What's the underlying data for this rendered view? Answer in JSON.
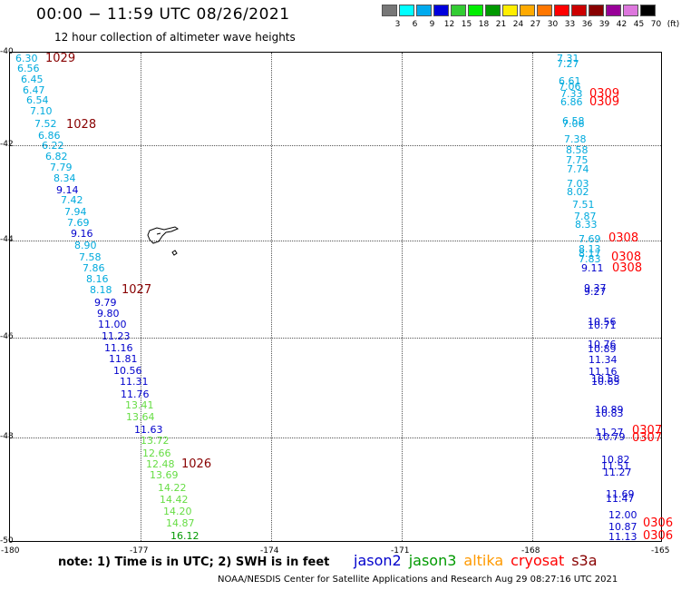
{
  "title": "00:00 − 11:59 UTC 08/26/2021",
  "subtitle": "12 hour collection of altimeter wave heights",
  "legend": {
    "colors": [
      "#777777",
      "#00ffff",
      "#00aaee",
      "#0000dd",
      "#33cc33",
      "#00ee00",
      "#009900",
      "#ffee00",
      "#ffaa00",
      "#ff7700",
      "#ff0000",
      "#cc0000",
      "#880000",
      "#990099",
      "#dd77dd",
      "#000000"
    ],
    "labels": [
      "3",
      "6",
      "9",
      "12",
      "15",
      "18",
      "21",
      "24",
      "27",
      "30",
      "33",
      "36",
      "39",
      "42",
      "45",
      "70",
      "(ft)"
    ]
  },
  "axes": {
    "y_labels": [
      "-40",
      "-42",
      "-44",
      "-46",
      "-48",
      "-50"
    ],
    "x_labels": [
      "-180",
      "-177",
      "-174",
      "-171",
      "-168",
      "-165"
    ]
  },
  "satellite_colors": {
    "jason2": "#0000cc",
    "jason3": "#009900",
    "altika": "#ff9900",
    "cryosat": "#ff0000",
    "s3a": "#880000"
  },
  "track_points": [
    {
      "t": "6.30",
      "c": "#00aadd"
    },
    {
      "t": "6.56",
      "c": "#00aadd"
    },
    {
      "t": "6.45",
      "c": "#00aadd"
    },
    {
      "t": "6.47",
      "c": "#00aadd"
    },
    {
      "t": "6.54",
      "c": "#00aadd"
    },
    {
      "t": "7.10",
      "c": "#00aadd"
    },
    {
      "t": "7.52",
      "c": "#00aadd"
    },
    {
      "t": "6.86",
      "c": "#00aadd"
    },
    {
      "t": "6.22",
      "c": "#00aadd"
    },
    {
      "t": "6.82",
      "c": "#00aadd"
    },
    {
      "t": "7.79",
      "c": "#00aadd"
    },
    {
      "t": "8.34",
      "c": "#00aadd"
    },
    {
      "t": "9.14",
      "c": "#0000cc"
    },
    {
      "t": "7.42",
      "c": "#00aadd"
    },
    {
      "t": "7.94",
      "c": "#00aadd"
    },
    {
      "t": "7.69",
      "c": "#00aadd"
    },
    {
      "t": "9.16",
      "c": "#0000cc"
    },
    {
      "t": "8.90",
      "c": "#00aadd"
    },
    {
      "t": "7.58",
      "c": "#00aadd"
    },
    {
      "t": "7.86",
      "c": "#00aadd"
    },
    {
      "t": "8.16",
      "c": "#00aadd"
    },
    {
      "t": "8.18",
      "c": "#00aadd"
    },
    {
      "t": "9.79",
      "c": "#0000cc"
    },
    {
      "t": "9.80",
      "c": "#0000cc"
    },
    {
      "t": "11.00",
      "c": "#0000cc"
    },
    {
      "t": "11.23",
      "c": "#0000cc"
    },
    {
      "t": "11.16",
      "c": "#0000cc"
    },
    {
      "t": "11.81",
      "c": "#0000cc"
    },
    {
      "t": "10.56",
      "c": "#0000cc"
    },
    {
      "t": "11.31",
      "c": "#0000cc"
    },
    {
      "t": "11.76",
      "c": "#0000cc"
    },
    {
      "t": "13.41",
      "c": "#66dd44"
    },
    {
      "t": "13.64",
      "c": "#66dd44"
    },
    {
      "t": "11.63",
      "c": "#0000cc"
    },
    {
      "t": "13.72",
      "c": "#66dd44"
    },
    {
      "t": "12.66",
      "c": "#66dd44"
    },
    {
      "t": "12.48",
      "c": "#66dd44"
    },
    {
      "t": "13.69",
      "c": "#66dd44"
    },
    {
      "t": "14.22",
      "c": "#66dd44"
    },
    {
      "t": "14.42",
      "c": "#66dd44"
    },
    {
      "t": "14.20",
      "c": "#66dd44"
    },
    {
      "t": "14.87",
      "c": "#66dd44"
    },
    {
      "t": "16.12",
      "c": "#009900"
    },
    {
      "t": "7.31",
      "c": "#00aadd"
    },
    {
      "t": "7.27",
      "c": "#00aadd"
    },
    {
      "t": "6.61",
      "c": "#00aadd"
    },
    {
      "t": "7.06",
      "c": "#00aadd"
    },
    {
      "t": "7.33",
      "c": "#00aadd"
    },
    {
      "t": "6.86",
      "c": "#00aadd"
    },
    {
      "t": "6.58",
      "c": "#00aadd"
    },
    {
      "t": "7.06",
      "c": "#00aadd"
    },
    {
      "t": "7.38",
      "c": "#00aadd"
    },
    {
      "t": "8.58",
      "c": "#00aadd"
    },
    {
      "t": "7.75",
      "c": "#00aadd"
    },
    {
      "t": "7.74",
      "c": "#00aadd"
    },
    {
      "t": "7.03",
      "c": "#00aadd"
    },
    {
      "t": "8.02",
      "c": "#00aadd"
    },
    {
      "t": "7.51",
      "c": "#00aadd"
    },
    {
      "t": "7.87",
      "c": "#00aadd"
    },
    {
      "t": "8.33",
      "c": "#00aadd"
    },
    {
      "t": "7.69",
      "c": "#00aadd"
    },
    {
      "t": "8.13",
      "c": "#00aadd"
    },
    {
      "t": "8.17",
      "c": "#00aadd"
    },
    {
      "t": "7.83",
      "c": "#00aadd"
    },
    {
      "t": "9.11",
      "c": "#0000cc"
    },
    {
      "t": "9.37",
      "c": "#0000cc"
    },
    {
      "t": "9.27",
      "c": "#0000cc"
    },
    {
      "t": "10.56",
      "c": "#0000cc"
    },
    {
      "t": "10.71",
      "c": "#0000cc"
    },
    {
      "t": "10.76",
      "c": "#0000cc"
    },
    {
      "t": "10.89",
      "c": "#0000cc"
    },
    {
      "t": "11.34",
      "c": "#0000cc"
    },
    {
      "t": "11.16",
      "c": "#0000cc"
    },
    {
      "t": "10.58",
      "c": "#0000cc"
    },
    {
      "t": "10.65",
      "c": "#0000cc"
    },
    {
      "t": "10.89",
      "c": "#0000cc"
    },
    {
      "t": "10.83",
      "c": "#0000cc"
    },
    {
      "t": "11.27",
      "c": "#0000cc"
    },
    {
      "t": "10.79",
      "c": "#0000cc"
    },
    {
      "t": "10.82",
      "c": "#0000cc"
    },
    {
      "t": "11.51",
      "c": "#0000cc"
    },
    {
      "t": "11.27",
      "c": "#0000cc"
    },
    {
      "t": "11.69",
      "c": "#0000cc"
    },
    {
      "t": "11.47",
      "c": "#0000cc"
    },
    {
      "t": "12.00",
      "c": "#0000cc"
    },
    {
      "t": "10.87",
      "c": "#0000cc"
    },
    {
      "t": "11.13",
      "c": "#0000cc"
    }
  ],
  "time_labels": [
    {
      "t": "1029",
      "c": "#880000"
    },
    {
      "t": "1028",
      "c": "#880000"
    },
    {
      "t": "1027",
      "c": "#880000"
    },
    {
      "t": "1026",
      "c": "#880000"
    },
    {
      "t": "0309",
      "c": "#ff0000"
    },
    {
      "t": "0309",
      "c": "#ff0000"
    },
    {
      "t": "0308",
      "c": "#ff0000"
    },
    {
      "t": "0308",
      "c": "#ff0000"
    },
    {
      "t": "0308",
      "c": "#ff0000"
    },
    {
      "t": "0307",
      "c": "#ff0000"
    },
    {
      "t": "0307",
      "c": "#ff0000"
    },
    {
      "t": "0306",
      "c": "#ff0000"
    },
    {
      "t": "0306",
      "c": "#ff0000"
    }
  ],
  "note": "note:  1) Time is in UTC;  2) SWH is in feet",
  "satellites": [
    "jason2",
    "jason3",
    "altika",
    "cryosat",
    "s3a"
  ],
  "credit": "NOAA/NESDIS Center for Satellite Applications and Research    Aug 29 08:27:16 UTC 2021"
}
